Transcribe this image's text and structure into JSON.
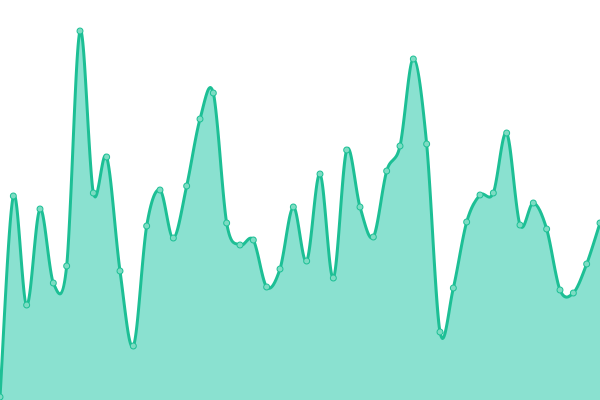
{
  "chart_data": {
    "type": "area",
    "title": "",
    "xlabel": "",
    "ylabel": "",
    "grid": false,
    "legend": "none",
    "axes_visible": false,
    "ylim": [
      0,
      400
    ],
    "x": [
      0,
      1,
      2,
      3,
      4,
      5,
      6,
      7,
      8,
      9,
      10,
      11,
      12,
      13,
      14,
      15,
      16,
      17,
      18,
      19,
      20,
      21,
      22,
      23,
      24,
      25,
      26,
      27,
      28,
      29,
      30,
      31,
      32,
      33,
      34,
      35,
      36,
      37,
      38,
      39,
      40,
      41,
      42,
      43,
      44,
      45
    ],
    "values": [
      3,
      204,
      95,
      191,
      117,
      134,
      369,
      207,
      243,
      129,
      54,
      174,
      210,
      162,
      214,
      281,
      307,
      177,
      155,
      160,
      113,
      131,
      193,
      139,
      226,
      122,
      250,
      193,
      163,
      229,
      254,
      341,
      256,
      68,
      112,
      178,
      205,
      207,
      267,
      175,
      197,
      171,
      110,
      107,
      136,
      177
    ],
    "colors": {
      "line": "#1dbf95",
      "fill": "#8ae1d0",
      "point_fill": "#7ddcc3"
    }
  }
}
